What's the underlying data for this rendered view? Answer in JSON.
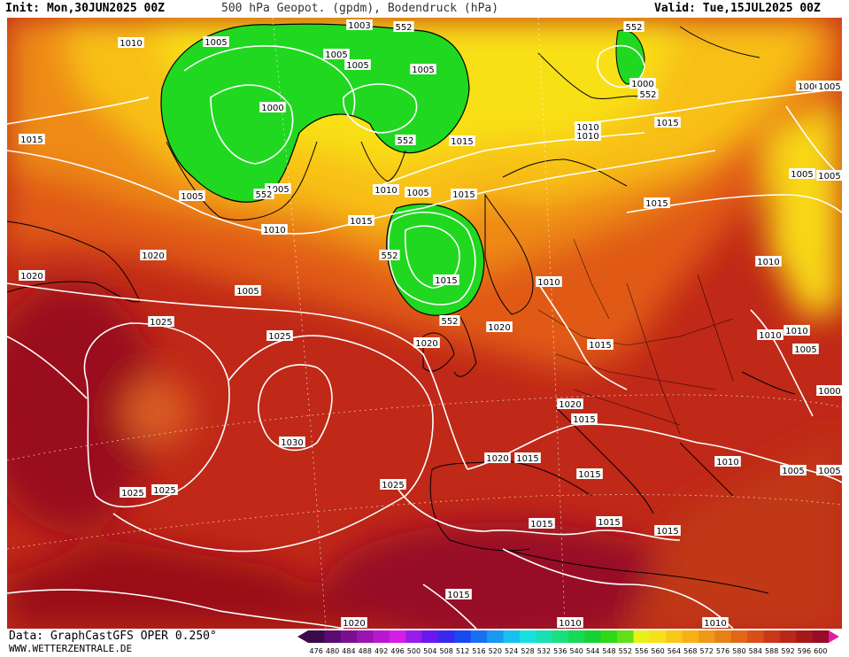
{
  "header": {
    "init": "Init: Mon,30JUN2025 00Z",
    "title": "500 hPa Geopot. (gpdm), Bodendruck (hPa)",
    "valid": "Valid: Tue,15JUL2025 00Z"
  },
  "footer": {
    "data_source": "Data: GraphCastGFS OPER 0.250°",
    "website": "WWW.WETTERZENTRALE.DE"
  },
  "colorbar": {
    "ticks": [
      "476",
      "480",
      "484",
      "488",
      "492",
      "496",
      "500",
      "504",
      "508",
      "512",
      "516",
      "520",
      "524",
      "528",
      "532",
      "536",
      "540",
      "544",
      "548",
      "552",
      "556",
      "560",
      "564",
      "568",
      "572",
      "576",
      "580",
      "584",
      "588",
      "592",
      "596",
      "600"
    ],
    "colors": [
      "#3a0a4a",
      "#5a0c70",
      "#7a1090",
      "#9a14b0",
      "#ba18d0",
      "#d81ce8",
      "#9a1ce8",
      "#6a18f0",
      "#3828f0",
      "#1848f0",
      "#1870f0",
      "#1898f0",
      "#18c0f0",
      "#18e0e0",
      "#18e0b0",
      "#18e080",
      "#18d858",
      "#18d030",
      "#30d818",
      "#60e018",
      "#e8f018",
      "#f8e018",
      "#f8c818",
      "#f8b018",
      "#f09818",
      "#e88018",
      "#e06818",
      "#d85018",
      "#c83818",
      "#b82818",
      "#a81818",
      "#980c28"
    ]
  },
  "pressure_labels": [
    "1010",
    "1005",
    "1005",
    "1005",
    "1005",
    "1000",
    "1005",
    "1005",
    "1010",
    "1010",
    "1005",
    "1015",
    "1015",
    "1010",
    "1010",
    "1015",
    "1015",
    "1020",
    "1020",
    "1005",
    "1015",
    "1020",
    "1025",
    "1025",
    "1020",
    "1010",
    "1015",
    "1010",
    "1010",
    "1005",
    "1005",
    "1015",
    "1030",
    "1020",
    "1015",
    "1020",
    "1015",
    "1015",
    "1025",
    "1025",
    "1025",
    "1015",
    "1015",
    "1015",
    "1010",
    "1005",
    "1005",
    "1015",
    "1010",
    "1020",
    "1010",
    "1010",
    "1000",
    "1000",
    "1005",
    "1015",
    "1005",
    "1000",
    "1003"
  ],
  "geopot_labels": [
    "552",
    "552",
    "552",
    "552",
    "552",
    "552",
    "552"
  ]
}
